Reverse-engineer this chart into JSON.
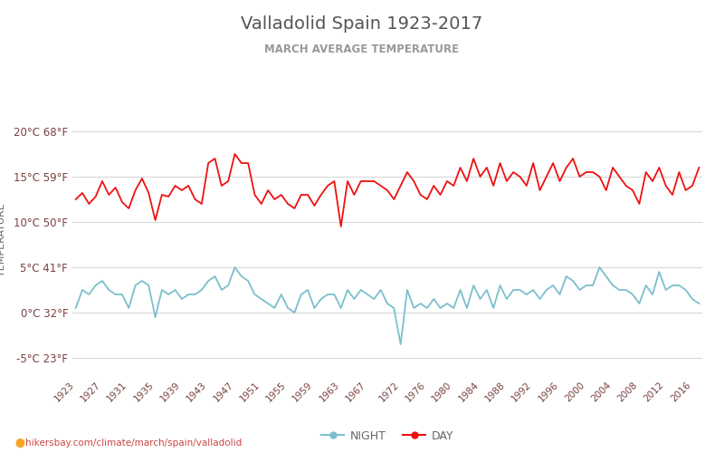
{
  "title": "Valladolid Spain 1923-2017",
  "subtitle": "MARCH AVERAGE TEMPERATURE",
  "ylabel": "TEMPERATURE",
  "watermark": "hikersbay.com/climate/march/spain/valladolid",
  "ylim": [
    -7,
    23
  ],
  "yticks_c": [
    -5,
    0,
    5,
    10,
    15,
    20
  ],
  "yticks_f": [
    23,
    32,
    41,
    50,
    59,
    68
  ],
  "years": [
    1923,
    1924,
    1925,
    1926,
    1927,
    1928,
    1929,
    1930,
    1931,
    1932,
    1933,
    1934,
    1935,
    1936,
    1937,
    1938,
    1939,
    1940,
    1941,
    1942,
    1943,
    1944,
    1945,
    1946,
    1947,
    1948,
    1949,
    1950,
    1951,
    1952,
    1953,
    1954,
    1955,
    1956,
    1957,
    1958,
    1959,
    1960,
    1961,
    1962,
    1963,
    1964,
    1965,
    1966,
    1967,
    1968,
    1969,
    1970,
    1971,
    1972,
    1973,
    1974,
    1975,
    1976,
    1977,
    1978,
    1979,
    1980,
    1981,
    1982,
    1983,
    1984,
    1985,
    1986,
    1987,
    1988,
    1989,
    1990,
    1991,
    1992,
    1993,
    1994,
    1995,
    1996,
    1997,
    1998,
    1999,
    2000,
    2001,
    2002,
    2003,
    2004,
    2005,
    2006,
    2007,
    2008,
    2009,
    2010,
    2011,
    2012,
    2013,
    2014,
    2015,
    2016,
    2017
  ],
  "day_temps": [
    12.5,
    13.2,
    12.0,
    12.8,
    14.5,
    13.0,
    13.8,
    12.2,
    11.5,
    13.5,
    14.8,
    13.2,
    10.2,
    13.0,
    12.8,
    14.0,
    13.5,
    14.0,
    12.5,
    12.0,
    16.5,
    17.0,
    14.0,
    14.5,
    17.5,
    16.5,
    16.5,
    13.0,
    12.0,
    13.5,
    12.5,
    13.0,
    12.0,
    11.5,
    13.0,
    13.0,
    11.8,
    13.0,
    14.0,
    14.5,
    9.5,
    14.5,
    13.0,
    14.5,
    14.5,
    14.5,
    14.0,
    13.5,
    12.5,
    14.0,
    15.5,
    14.5,
    13.0,
    12.5,
    14.0,
    13.0,
    14.5,
    14.0,
    16.0,
    14.5,
    17.0,
    15.0,
    16.0,
    14.0,
    16.5,
    14.5,
    15.5,
    15.0,
    14.0,
    16.5,
    13.5,
    15.0,
    16.5,
    14.5,
    16.0,
    17.0,
    15.0,
    15.5,
    15.5,
    15.0,
    13.5,
    16.0,
    15.0,
    14.0,
    13.5,
    12.0,
    15.5,
    14.5,
    16.0,
    14.0,
    13.0,
    15.5,
    13.5,
    14.0,
    16.0
  ],
  "night_temps": [
    0.5,
    2.5,
    2.0,
    3.0,
    3.5,
    2.5,
    2.0,
    2.0,
    0.5,
    3.0,
    3.5,
    3.0,
    -0.5,
    2.5,
    2.0,
    2.5,
    1.5,
    2.0,
    2.0,
    2.5,
    3.5,
    4.0,
    2.5,
    3.0,
    5.0,
    4.0,
    3.5,
    2.0,
    1.5,
    1.0,
    0.5,
    2.0,
    0.5,
    0.0,
    2.0,
    2.5,
    0.5,
    1.5,
    2.0,
    2.0,
    0.5,
    2.5,
    1.5,
    2.5,
    2.0,
    1.5,
    2.5,
    1.0,
    0.5,
    -3.5,
    2.5,
    0.5,
    1.0,
    0.5,
    1.5,
    0.5,
    1.0,
    0.5,
    2.5,
    0.5,
    3.0,
    1.5,
    2.5,
    0.5,
    3.0,
    1.5,
    2.5,
    2.5,
    2.0,
    2.5,
    1.5,
    2.5,
    3.0,
    2.0,
    4.0,
    3.5,
    2.5,
    3.0,
    3.0,
    5.0,
    4.0,
    3.0,
    2.5,
    2.5,
    2.0,
    1.0,
    3.0,
    2.0,
    4.5,
    2.5,
    3.0,
    3.0,
    2.5,
    1.5,
    1.0
  ],
  "day_color": "#ee1111",
  "night_color": "#7bbfcc",
  "bg_color": "#ffffff",
  "grid_color": "#d8d8d8",
  "title_color": "#555555",
  "subtitle_color": "#999999",
  "tick_color": "#7a4040",
  "ylabel_color": "#666666",
  "xtick_years": [
    1923,
    1927,
    1931,
    1935,
    1939,
    1943,
    1947,
    1951,
    1955,
    1959,
    1963,
    1967,
    1972,
    1976,
    1980,
    1984,
    1988,
    1992,
    1996,
    2000,
    2004,
    2008,
    2012,
    2016
  ],
  "watermark_color": "#cc4444",
  "pin_color": "#f5a623"
}
